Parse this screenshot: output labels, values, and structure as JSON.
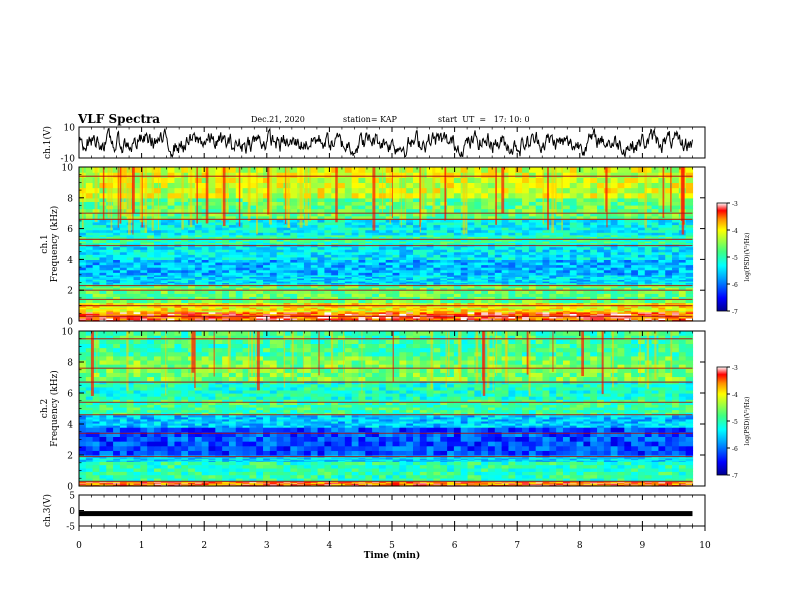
{
  "header": {
    "title": "VLF Spectra",
    "date": "Dec.21, 2020",
    "station": "station= KAP",
    "start": "start  UT  =   17: 10: 0"
  },
  "chart_data": [
    {
      "type": "line",
      "name": "ch1-voltage",
      "ylabel": "ch.1(V)",
      "ylim": [
        -10,
        10
      ],
      "yticks": [
        "10",
        "-10"
      ],
      "xlim": [
        0,
        10
      ],
      "x_end": 9.8,
      "note_series": "noisy trace oscillating around 0 V"
    },
    {
      "type": "heatmap",
      "name": "ch1-spectrogram",
      "ylabel": "ch.1\nFrequency (kHz)",
      "ylabel_lines": [
        "ch.1",
        "Frequency (kHz)"
      ],
      "ylim": [
        0,
        10
      ],
      "yticks": [
        "0",
        "2",
        "4",
        "6",
        "8",
        "10"
      ],
      "xlim": [
        0,
        10
      ],
      "x_end": 9.8,
      "colorbar": {
        "label": "log(PSD)(V²/Hz)",
        "range": [
          -7,
          -3
        ],
        "ticks": [
          "-3",
          "-4",
          "-5",
          "-6",
          "-7"
        ]
      },
      "bands": [
        {
          "from": 0.0,
          "to": 0.6,
          "level": -3.4
        },
        {
          "from": 0.6,
          "to": 1.2,
          "level": -4.0
        },
        {
          "from": 1.2,
          "to": 2.4,
          "level": -4.7
        },
        {
          "from": 2.4,
          "to": 3.0,
          "level": -5.5
        },
        {
          "from": 3.0,
          "to": 4.0,
          "level": -5.7
        },
        {
          "from": 4.0,
          "to": 5.0,
          "level": -5.4
        },
        {
          "from": 5.0,
          "to": 5.6,
          "level": -5.0
        },
        {
          "from": 5.6,
          "to": 6.6,
          "level": -5.3
        },
        {
          "from": 6.6,
          "to": 8.0,
          "level": -4.7
        },
        {
          "from": 8.0,
          "to": 10.0,
          "level": -4.2
        }
      ],
      "lines_khz": [
        0.3,
        1.0,
        1.4,
        2.0,
        2.3,
        4.9,
        5.3,
        6.6,
        7.0,
        9.4
      ]
    },
    {
      "type": "heatmap",
      "name": "ch2-spectrogram",
      "ylabel": "ch.2\nFrequency (kHz)",
      "ylabel_lines": [
        "ch.2",
        "Frequency (kHz)"
      ],
      "ylim": [
        0,
        10
      ],
      "yticks": [
        "0",
        "2",
        "4",
        "6",
        "8",
        "10"
      ],
      "xlim": [
        0,
        10
      ],
      "x_end": 9.8,
      "colorbar": {
        "label": "log(PSD)(V²/Hz)",
        "range": [
          -7,
          -3
        ],
        "ticks": [
          "-3",
          "-4",
          "-5",
          "-6",
          "-7"
        ]
      },
      "bands": [
        {
          "from": 0.0,
          "to": 0.3,
          "level": -3.5
        },
        {
          "from": 0.3,
          "to": 1.6,
          "level": -5.0
        },
        {
          "from": 1.6,
          "to": 2.0,
          "level": -5.5
        },
        {
          "from": 2.0,
          "to": 3.8,
          "level": -6.2
        },
        {
          "from": 3.8,
          "to": 4.6,
          "level": -5.6
        },
        {
          "from": 4.6,
          "to": 5.6,
          "level": -4.9
        },
        {
          "from": 5.6,
          "to": 6.8,
          "level": -5.1
        },
        {
          "from": 6.8,
          "to": 8.4,
          "level": -4.6
        },
        {
          "from": 8.4,
          "to": 10.0,
          "level": -4.9
        }
      ],
      "lines_khz": [
        0.3,
        1.9,
        3.4,
        4.6,
        5.4,
        6.7,
        7.6,
        9.5
      ]
    },
    {
      "type": "line",
      "name": "ch3-voltage",
      "ylabel": "ch.3(V)",
      "ylim": [
        -5,
        5
      ],
      "yticks": [
        "5",
        "0",
        "-5"
      ],
      "xlim": [
        0,
        10
      ],
      "x_end": 9.8,
      "series_value": -1.0,
      "xlabel": "Time (min)",
      "xticks": [
        "0",
        "1",
        "2",
        "3",
        "4",
        "5",
        "6",
        "7",
        "8",
        "9",
        "10"
      ]
    }
  ],
  "colors": {
    "colormap": [
      "#00008f",
      "#0000ff",
      "#00a0ff",
      "#00ffff",
      "#40ff80",
      "#a0ff40",
      "#ffff00",
      "#ff9000",
      "#ff0000",
      "#ffffff"
    ],
    "trace": "#000000",
    "frame": "#000000"
  }
}
